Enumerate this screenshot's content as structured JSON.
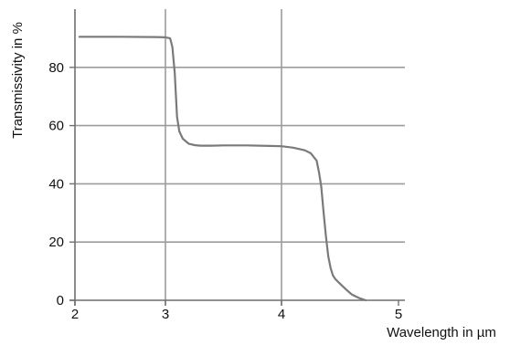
{
  "chart_data": {
    "type": "line",
    "title": "",
    "xlabel": "Wavelength in µm",
    "ylabel": "Transmissivity in %",
    "xlim": [
      2,
      5
    ],
    "ylim": [
      0,
      100
    ],
    "xticks": [
      2,
      3,
      4,
      5
    ],
    "yticks": [
      0,
      20,
      40,
      60,
      80
    ],
    "x_tick_labels": [
      "2",
      "3",
      "4",
      "5"
    ],
    "y_tick_labels": [
      "0",
      "20",
      "40",
      "60",
      "80"
    ],
    "grid": true,
    "legend": "none",
    "series": [
      {
        "color": "#7a7a7a",
        "x": [
          2.05,
          2.5,
          2.9,
          3.0,
          3.04,
          3.06,
          3.08,
          3.1,
          3.12,
          3.15,
          3.2,
          3.25,
          3.3,
          3.4,
          3.5,
          3.7,
          3.9,
          4.0,
          4.1,
          4.2,
          4.25,
          4.3,
          4.32,
          4.34,
          4.36,
          4.38,
          4.4,
          4.42,
          4.44,
          4.46,
          4.48,
          4.5,
          4.55,
          4.6,
          4.66,
          4.72
        ],
        "y": [
          90.5,
          90.5,
          90.4,
          90.3,
          90.0,
          87,
          78,
          63,
          58,
          55.5,
          53.8,
          53.3,
          53.1,
          53.1,
          53.2,
          53.2,
          53.0,
          52.9,
          52.4,
          51.5,
          50.5,
          48,
          44,
          39,
          30,
          22,
          15,
          11,
          8.5,
          7.3,
          6.5,
          5.7,
          3.8,
          2.0,
          0.8,
          0.0
        ]
      }
    ]
  },
  "colors": {
    "grid": "#9c9c9c",
    "axis": "#6f6f6f",
    "line": "#7a7a7a",
    "text": "#111111"
  }
}
